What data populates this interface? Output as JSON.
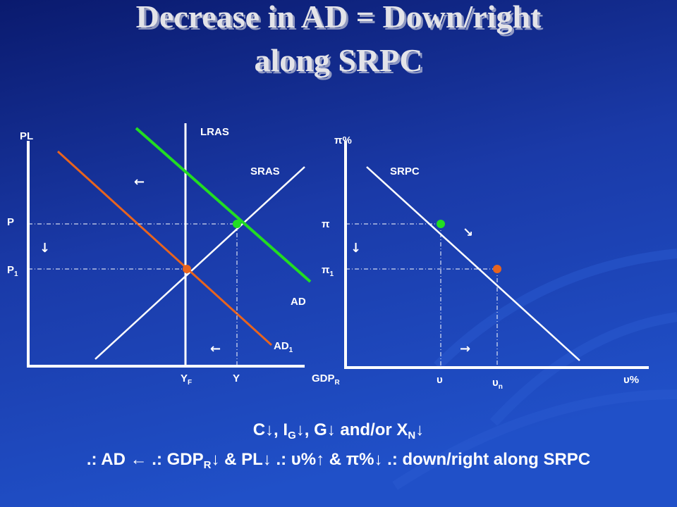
{
  "title": {
    "line1": "Decrease in AD = Down/right",
    "line2": "along SRPC"
  },
  "left_graph": {
    "y_axis": "PL",
    "lras": "LRAS",
    "sras": "SRAS",
    "p": "P",
    "p1": {
      "main": "P",
      "sub": "1"
    },
    "ad": "AD",
    "ad1": {
      "main": "AD",
      "sub": "1"
    },
    "yf": {
      "main": "Y",
      "sub": "F"
    },
    "y": "Y",
    "x_axis": {
      "main": "GDP",
      "sub": "R"
    },
    "arrows": [
      "←",
      "↓",
      "←"
    ]
  },
  "right_graph": {
    "y_axis": "π%",
    "srpc": "SRPC",
    "pi": "π",
    "pi1": {
      "main": "π",
      "sub": "1"
    },
    "u": "υ",
    "un": {
      "main": "υ",
      "sub": "n"
    },
    "x_axis": "υ%",
    "arrows": [
      "↓",
      "↘",
      "→"
    ]
  },
  "footer": {
    "line1": [
      "C↓, I",
      "G",
      "↓, G↓ and/or X",
      "N",
      "↓"
    ],
    "line2": [
      ".: AD ← .: GDP",
      "R",
      "↓ & PL↓ .: υ%↑ & π%↓ .: down/right along SRPC"
    ]
  }
}
